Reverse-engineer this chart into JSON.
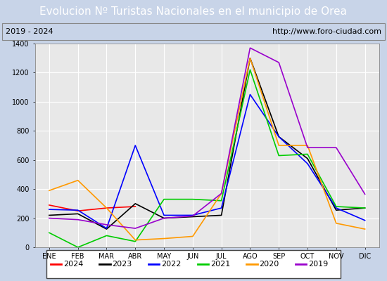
{
  "title": "Evolucion Nº Turistas Nacionales en el municipio de Orea",
  "subtitle_left": "2019 - 2024",
  "subtitle_right": "http://www.foro-ciudad.com",
  "months": [
    "ENE",
    "FEB",
    "MAR",
    "ABR",
    "MAY",
    "JUN",
    "JUL",
    "AGO",
    "SEP",
    "OCT",
    "NOV",
    "DIC"
  ],
  "ylim": [
    0,
    1400
  ],
  "yticks": [
    0,
    200,
    400,
    600,
    800,
    1000,
    1200,
    1400
  ],
  "series": {
    "2024": {
      "color": "#ff0000",
      "data": [
        290,
        250,
        270,
        280,
        null,
        null,
        null,
        null,
        null,
        null,
        null,
        null
      ]
    },
    "2023": {
      "color": "#000000",
      "data": [
        220,
        230,
        125,
        300,
        200,
        210,
        220,
        1300,
        760,
        610,
        255,
        270
      ]
    },
    "2022": {
      "color": "#0000ff",
      "data": [
        260,
        255,
        130,
        700,
        220,
        220,
        270,
        1050,
        760,
        575,
        270,
        185
      ]
    },
    "2021": {
      "color": "#00cc00",
      "data": [
        100,
        0,
        80,
        40,
        330,
        330,
        320,
        1220,
        630,
        640,
        280,
        270
      ]
    },
    "2020": {
      "color": "#ff9900",
      "data": [
        390,
        460,
        270,
        50,
        60,
        75,
        370,
        1300,
        700,
        700,
        165,
        125
      ]
    },
    "2019": {
      "color": "#9900cc",
      "data": [
        200,
        190,
        155,
        130,
        200,
        215,
        370,
        1370,
        1270,
        685,
        685,
        365
      ]
    }
  },
  "legend_order": [
    "2024",
    "2023",
    "2022",
    "2021",
    "2020",
    "2019"
  ],
  "title_bg_color": "#4a90d9",
  "title_color": "#ffffff",
  "plot_bg_color": "#e8e8e8",
  "outer_bg_color": "#c8d4e8",
  "grid_color": "#ffffff",
  "subtitle_bg_color": "#dcdcdc",
  "title_fontsize": 11,
  "subtitle_fontsize": 8,
  "axis_fontsize": 7,
  "legend_fontsize": 8
}
